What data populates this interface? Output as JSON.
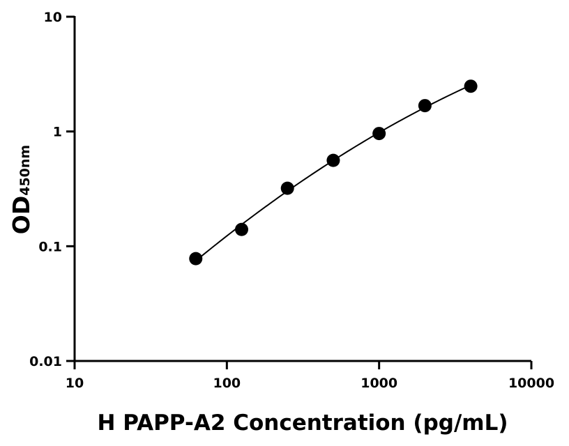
{
  "chart_data": {
    "type": "scatter",
    "xlabel": "H PAPP-A2 Concentration (pg/mL)",
    "ylabel_main": "OD",
    "ylabel_sub": "450nm",
    "x_scale": "log",
    "y_scale": "log",
    "xlim": [
      10,
      10000
    ],
    "ylim": [
      0.01,
      10
    ],
    "x_ticks": [
      "10",
      "100",
      "1000",
      "10000"
    ],
    "y_ticks": [
      "0.01",
      "0.1",
      "1",
      "10"
    ],
    "grid": false,
    "fit_line": true,
    "marker_color": "#000000",
    "series": [
      {
        "x": [
          62.5,
          125,
          250,
          500,
          1000,
          2000,
          4000
        ],
        "y": [
          0.078,
          0.14,
          0.32,
          0.56,
          0.96,
          1.68,
          2.48
        ]
      }
    ]
  }
}
